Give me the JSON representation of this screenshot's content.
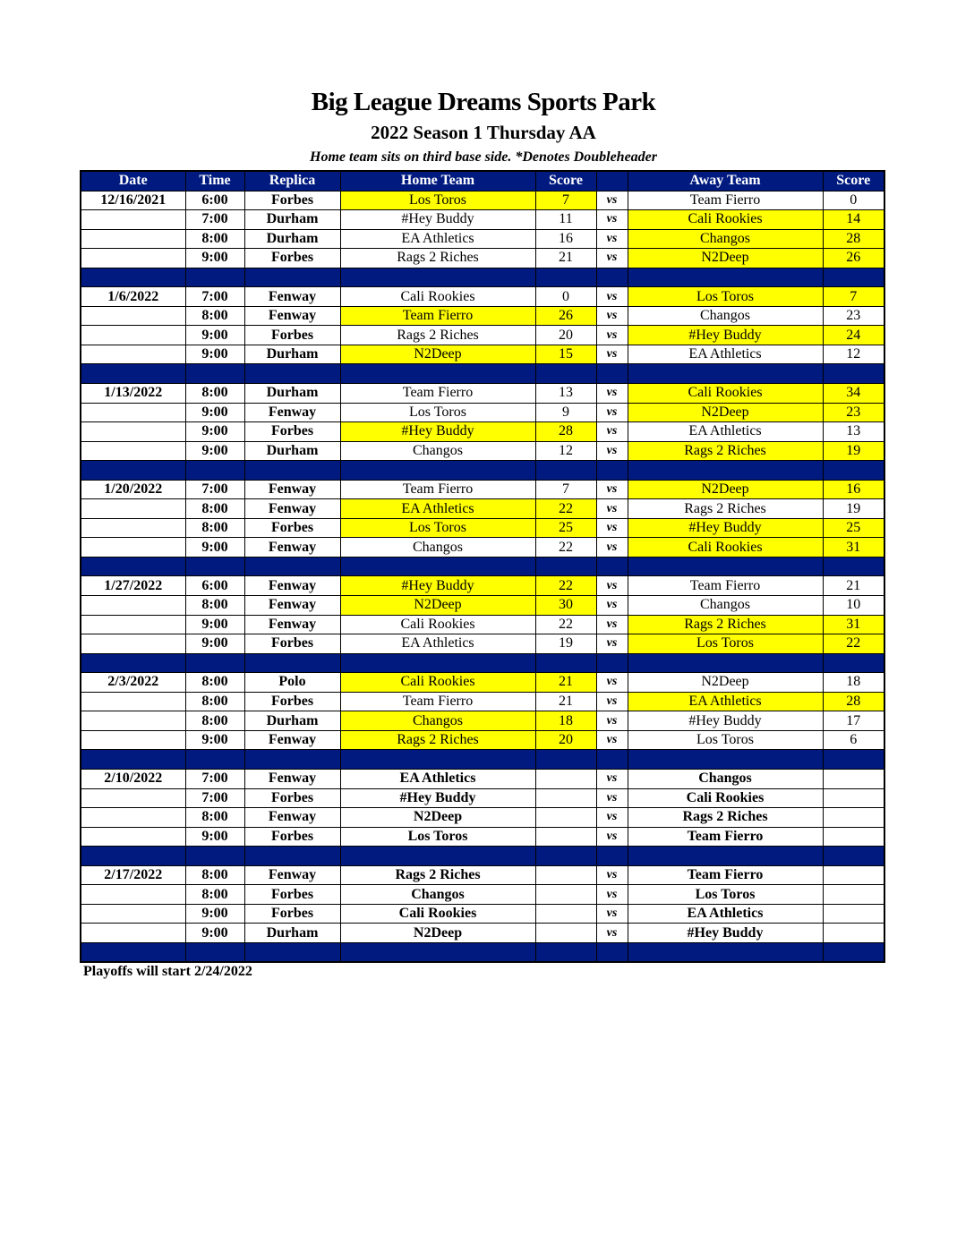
{
  "header": {
    "title": "Big League Dreams Sports Park",
    "subtitle": "2022 Season 1 Thursday AA",
    "note": "Home team sits on third base side.  *Denotes Doubleheader"
  },
  "columns": [
    "Date",
    "Time",
    "Replica",
    "Home Team",
    "Score",
    "",
    "Away Team",
    "Score"
  ],
  "vs_label": "vs",
  "colors": {
    "header_bg": "#001a80",
    "winner_bg": "#ffff00"
  },
  "weeks": [
    {
      "date": "12/16/2021",
      "games": [
        {
          "time": "6:00",
          "field": "Forbes",
          "home": "Los Toros",
          "home_score": "7",
          "away": "Team Fierro",
          "away_score": "0",
          "winner": "home"
        },
        {
          "time": "7:00",
          "field": "Durham",
          "home": "#Hey Buddy",
          "home_score": "11",
          "away": "Cali Rookies",
          "away_score": "14",
          "winner": "away"
        },
        {
          "time": "8:00",
          "field": "Durham",
          "home": "EA Athletics",
          "home_score": "16",
          "away": "Changos",
          "away_score": "28",
          "winner": "away"
        },
        {
          "time": "9:00",
          "field": "Forbes",
          "home": "Rags 2 Riches",
          "home_score": "21",
          "away": "N2Deep",
          "away_score": "26",
          "winner": "away"
        }
      ]
    },
    {
      "date": "1/6/2022",
      "games": [
        {
          "time": "7:00",
          "field": "Fenway",
          "home": "Cali Rookies",
          "home_score": "0",
          "away": "Los Toros",
          "away_score": "7",
          "winner": "away"
        },
        {
          "time": "8:00",
          "field": "Fenway",
          "home": "Team Fierro",
          "home_score": "26",
          "away": "Changos",
          "away_score": "23",
          "winner": "home"
        },
        {
          "time": "9:00",
          "field": "Forbes",
          "home": "Rags 2 Riches",
          "home_score": "20",
          "away": "#Hey Buddy",
          "away_score": "24",
          "winner": "away"
        },
        {
          "time": "9:00",
          "field": "Durham",
          "home": "N2Deep",
          "home_score": "15",
          "away": "EA Athletics",
          "away_score": "12",
          "winner": "home"
        }
      ]
    },
    {
      "date": "1/13/2022",
      "games": [
        {
          "time": "8:00",
          "field": "Durham",
          "home": "Team Fierro",
          "home_score": "13",
          "away": "Cali Rookies",
          "away_score": "34",
          "winner": "away"
        },
        {
          "time": "9:00",
          "field": "Fenway",
          "home": "Los Toros",
          "home_score": "9",
          "away": "N2Deep",
          "away_score": "23",
          "winner": "away"
        },
        {
          "time": "9:00",
          "field": "Forbes",
          "home": "#Hey Buddy",
          "home_score": "28",
          "away": "EA Athletics",
          "away_score": "13",
          "winner": "home"
        },
        {
          "time": "9:00",
          "field": "Durham",
          "home": "Changos",
          "home_score": "12",
          "away": "Rags 2 Riches",
          "away_score": "19",
          "winner": "away"
        }
      ]
    },
    {
      "date": "1/20/2022",
      "games": [
        {
          "time": "7:00",
          "field": "Fenway",
          "home": "Team Fierro",
          "home_score": "7",
          "away": "N2Deep",
          "away_score": "16",
          "winner": "away"
        },
        {
          "time": "8:00",
          "field": "Fenway",
          "home": "EA Athletics",
          "home_score": "22",
          "away": "Rags 2 Riches",
          "away_score": "19",
          "winner": "home"
        },
        {
          "time": "8:00",
          "field": "Forbes",
          "home": "Los Toros",
          "home_score": "25",
          "away": "#Hey Buddy",
          "away_score": "25",
          "winner": "both"
        },
        {
          "time": "9:00",
          "field": "Fenway",
          "home": "Changos",
          "home_score": "22",
          "away": "Cali Rookies",
          "away_score": "31",
          "winner": "away"
        }
      ]
    },
    {
      "date": "1/27/2022",
      "games": [
        {
          "time": "6:00",
          "field": "Fenway",
          "home": "#Hey Buddy",
          "home_score": "22",
          "away": "Team Fierro",
          "away_score": "21",
          "winner": "home"
        },
        {
          "time": "8:00",
          "field": "Fenway",
          "home": "N2Deep",
          "home_score": "30",
          "away": "Changos",
          "away_score": "10",
          "winner": "home"
        },
        {
          "time": "9:00",
          "field": "Fenway",
          "home": "Cali Rookies",
          "home_score": "22",
          "away": "Rags 2 Riches",
          "away_score": "31",
          "winner": "away"
        },
        {
          "time": "9:00",
          "field": "Forbes",
          "home": "EA Athletics",
          "home_score": "19",
          "away": "Los Toros",
          "away_score": "22",
          "winner": "away"
        }
      ]
    },
    {
      "date": "2/3/2022",
      "games": [
        {
          "time": "8:00",
          "field": "Polo",
          "home": "Cali Rookies",
          "home_score": "21",
          "away": "N2Deep",
          "away_score": "18",
          "winner": "home"
        },
        {
          "time": "8:00",
          "field": "Forbes",
          "home": "Team Fierro",
          "home_score": "21",
          "away": "EA Athletics",
          "away_score": "28",
          "winner": "away"
        },
        {
          "time": "8:00",
          "field": "Durham",
          "home": "Changos",
          "home_score": "18",
          "away": "#Hey Buddy",
          "away_score": "17",
          "winner": "home"
        },
        {
          "time": "9:00",
          "field": "Fenway",
          "home": "Rags 2 Riches",
          "home_score": "20",
          "away": "Los Toros",
          "away_score": "6",
          "winner": "home"
        }
      ]
    },
    {
      "date": "2/10/2022",
      "games": [
        {
          "time": "7:00",
          "field": "Fenway",
          "home": "EA Athletics",
          "home_score": "",
          "away": "Changos",
          "away_score": "",
          "winner": null
        },
        {
          "time": "7:00",
          "field": "Forbes",
          "home": "#Hey Buddy",
          "home_score": "",
          "away": "Cali Rookies",
          "away_score": "",
          "winner": null
        },
        {
          "time": "8:00",
          "field": "Fenway",
          "home": "N2Deep",
          "home_score": "",
          "away": "Rags 2 Riches",
          "away_score": "",
          "winner": null
        },
        {
          "time": "9:00",
          "field": "Forbes",
          "home": "Los Toros",
          "home_score": "",
          "away": "Team Fierro",
          "away_score": "",
          "winner": null
        }
      ]
    },
    {
      "date": "2/17/2022",
      "games": [
        {
          "time": "8:00",
          "field": "Fenway",
          "home": "Rags 2 Riches",
          "home_score": "",
          "away": "Team Fierro",
          "away_score": "",
          "winner": null
        },
        {
          "time": "8:00",
          "field": "Forbes",
          "home": "Changos",
          "home_score": "",
          "away": "Los Toros",
          "away_score": "",
          "winner": null
        },
        {
          "time": "9:00",
          "field": "Forbes",
          "home": "Cali Rookies",
          "home_score": "",
          "away": "EA Athletics",
          "away_score": "",
          "winner": null
        },
        {
          "time": "9:00",
          "field": "Durham",
          "home": "N2Deep",
          "home_score": "",
          "away": "#Hey Buddy",
          "away_score": "",
          "winner": null
        }
      ]
    }
  ],
  "footer": "Playoffs will start 2/24/2022"
}
